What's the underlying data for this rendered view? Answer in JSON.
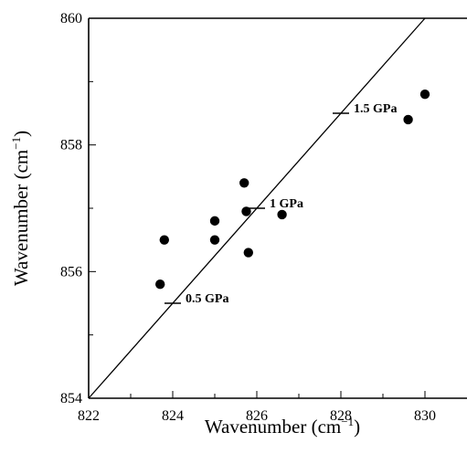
{
  "chart_data": {
    "type": "scatter",
    "xlabel": "Wavenumber (cm",
    "xlabel_sup": "−1",
    "xlabel_end": ")",
    "ylabel": "Wavenumber (cm",
    "ylabel_sup": "−1",
    "ylabel_end": ")",
    "xlim": [
      822,
      831
    ],
    "ylim": [
      854,
      860
    ],
    "x_major_ticks": [
      822,
      824,
      826,
      828,
      830
    ],
    "x_minor_ticks": [
      823,
      825,
      827,
      829
    ],
    "y_major_ticks": [
      854,
      856,
      858,
      860
    ],
    "y_minor_ticks": [
      855,
      857,
      859
    ],
    "grid": false,
    "points": [
      {
        "x": 823.7,
        "y": 855.8
      },
      {
        "x": 823.8,
        "y": 856.5
      },
      {
        "x": 825.0,
        "y": 856.8
      },
      {
        "x": 825.0,
        "y": 856.5
      },
      {
        "x": 825.7,
        "y": 857.4
      },
      {
        "x": 825.75,
        "y": 856.95
      },
      {
        "x": 825.8,
        "y": 856.3
      },
      {
        "x": 826.6,
        "y": 856.9
      },
      {
        "x": 829.6,
        "y": 858.4
      },
      {
        "x": 830.0,
        "y": 858.8
      }
    ],
    "line": {
      "x": [
        822,
        830
      ],
      "y": [
        854,
        860
      ]
    },
    "annotations": [
      {
        "text": "0.5 GPa",
        "x": 824.0,
        "y": 855.5
      },
      {
        "text": "1 GPa",
        "x": 826.0,
        "y": 857.0
      },
      {
        "text": "1.5 GPa",
        "x": 828.0,
        "y": 858.5
      }
    ]
  }
}
